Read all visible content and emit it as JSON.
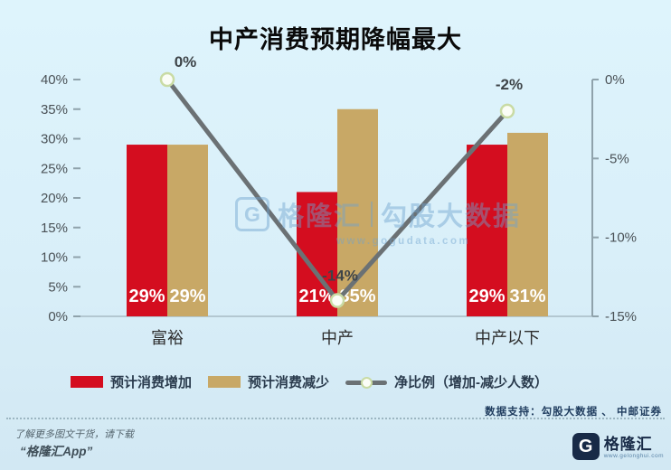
{
  "title": "中产消费预期降幅最大",
  "chart_data": {
    "type": "bar+line",
    "categories": [
      "富裕",
      "中产",
      "中产以下"
    ],
    "series": [
      {
        "name": "预计消费增加",
        "type": "bar",
        "color": "#d40d1f",
        "values": [
          29,
          21,
          29
        ],
        "labels": [
          "29%",
          "21%",
          "29%"
        ]
      },
      {
        "name": "预计消费减少",
        "type": "bar",
        "color": "#c8a866",
        "values": [
          29,
          35,
          31
        ],
        "labels": [
          "29%",
          "35%",
          "31%"
        ]
      },
      {
        "name": "净比例（增加-减少人数）",
        "type": "line",
        "color": "#6b7174",
        "marker_fill": "#fbfdf6",
        "marker_stroke": "#c9dba4",
        "values": [
          0,
          -14,
          -2
        ],
        "labels": [
          "0%",
          "-14%",
          "-2%"
        ]
      }
    ],
    "left_axis": {
      "ticks": [
        "40%",
        "35%",
        "30%",
        "25%",
        "20%",
        "15%",
        "10%",
        "5%",
        "0%"
      ],
      "min": 0,
      "max": 40
    },
    "right_axis": {
      "ticks": [
        "0%",
        "-5%",
        "-10%",
        "-15%"
      ],
      "min": -15,
      "max": 0
    },
    "legend_position": "bottom",
    "grid": false
  },
  "watermark": {
    "g": "G",
    "brand": "格隆汇",
    "divider": "|",
    "product": "勾股大数据",
    "url": "www.gogudata.com"
  },
  "footer": {
    "data_support": "数据支持：勾股大数据 、 中邮证券",
    "promo_line1": "了解更多图文干货，请下载",
    "promo_line2": "“格隆汇App”",
    "g": "G",
    "brand": "格隆汇",
    "brand_url": "www.gelonghui.com"
  },
  "colors": {
    "background": "#d9eff9",
    "red": "#d40d1f",
    "tan": "#c8a866",
    "line_gray": "#6b7174",
    "navy": "#182a47"
  }
}
